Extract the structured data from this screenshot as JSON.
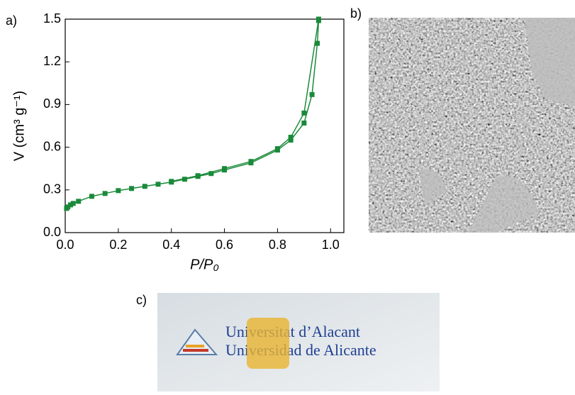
{
  "chart_data": {
    "type": "line",
    "xlabel": "P/P₀",
    "ylabel": "V (cm³ g⁻¹)",
    "xlim": [
      0,
      1.05
    ],
    "ylim": [
      0,
      1.5
    ],
    "xticks": [
      {
        "value": 0,
        "label": "0.0"
      },
      0.2,
      0.4,
      0.6,
      0.8,
      {
        "value": 1,
        "label": "1.0"
      }
    ],
    "yticks": [
      {
        "value": 0,
        "label": "0.0"
      },
      0.3,
      0.6,
      0.9,
      1.2,
      1.5
    ],
    "series": [
      {
        "color": "#1a8a3a",
        "x": [
          0.005,
          0.01,
          0.02,
          0.03,
          0.05,
          0.1,
          0.15,
          0.2,
          0.25,
          0.3,
          0.35,
          0.4,
          0.45,
          0.5,
          0.55,
          0.6,
          0.7,
          0.8,
          0.85,
          0.9,
          0.93,
          0.95,
          0.955
        ],
        "values": [
          0.17,
          0.18,
          0.195,
          0.205,
          0.22,
          0.255,
          0.275,
          0.295,
          0.31,
          0.325,
          0.34,
          0.355,
          0.375,
          0.395,
          0.415,
          0.44,
          0.49,
          0.58,
          0.65,
          0.77,
          0.97,
          1.33,
          1.49
        ]
      },
      {
        "color": "#1a8a3a",
        "x": [
          0.955,
          0.9,
          0.85,
          0.8,
          0.7,
          0.6,
          0.5,
          0.4
        ],
        "values": [
          1.5,
          0.84,
          0.67,
          0.59,
          0.5,
          0.45,
          0.4,
          0.36
        ]
      }
    ]
  },
  "panel_labels": [
    "a)",
    "b)",
    "c)"
  ],
  "photo_text": [
    "Universitat d’Alacant",
    "Universidad de Alicante"
  ]
}
